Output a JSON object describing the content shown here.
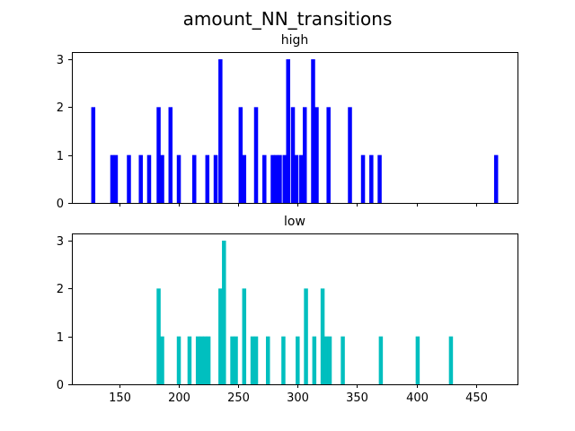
{
  "chart_data": {
    "type": "bar",
    "title": "amount_NN_transitions",
    "xlim": [
      110,
      485
    ],
    "xticks": [
      150,
      200,
      250,
      300,
      350,
      400,
      450
    ],
    "yticks": [
      0,
      1,
      2,
      3
    ],
    "ylim": [
      0,
      3.15
    ],
    "bin_width": 3.4,
    "sharex": true,
    "panels": [
      {
        "title": "high",
        "color": "#0000ff",
        "bins": [
          {
            "x": 128,
            "value": 2
          },
          {
            "x": 144,
            "value": 1
          },
          {
            "x": 147,
            "value": 1
          },
          {
            "x": 158,
            "value": 1
          },
          {
            "x": 168,
            "value": 1
          },
          {
            "x": 175,
            "value": 1
          },
          {
            "x": 183,
            "value": 2
          },
          {
            "x": 186,
            "value": 1
          },
          {
            "x": 193,
            "value": 2
          },
          {
            "x": 200,
            "value": 1
          },
          {
            "x": 213,
            "value": 1
          },
          {
            "x": 224,
            "value": 1
          },
          {
            "x": 231,
            "value": 1
          },
          {
            "x": 235,
            "value": 3
          },
          {
            "x": 252,
            "value": 2
          },
          {
            "x": 255,
            "value": 1
          },
          {
            "x": 265,
            "value": 2
          },
          {
            "x": 272,
            "value": 1
          },
          {
            "x": 279,
            "value": 1
          },
          {
            "x": 282,
            "value": 1
          },
          {
            "x": 285,
            "value": 1
          },
          {
            "x": 289,
            "value": 1
          },
          {
            "x": 292,
            "value": 3
          },
          {
            "x": 296,
            "value": 2
          },
          {
            "x": 299,
            "value": 1
          },
          {
            "x": 303,
            "value": 1
          },
          {
            "x": 306,
            "value": 2
          },
          {
            "x": 313,
            "value": 3
          },
          {
            "x": 316,
            "value": 2
          },
          {
            "x": 326,
            "value": 2
          },
          {
            "x": 344,
            "value": 2
          },
          {
            "x": 355,
            "value": 1
          },
          {
            "x": 362,
            "value": 1
          },
          {
            "x": 369,
            "value": 1
          },
          {
            "x": 467,
            "value": 1
          }
        ]
      },
      {
        "title": "low",
        "color": "#00bfbf",
        "bins": [
          {
            "x": 183,
            "value": 2
          },
          {
            "x": 186,
            "value": 1
          },
          {
            "x": 200,
            "value": 1
          },
          {
            "x": 209,
            "value": 1
          },
          {
            "x": 216,
            "value": 1
          },
          {
            "x": 219,
            "value": 1
          },
          {
            "x": 222,
            "value": 1
          },
          {
            "x": 225,
            "value": 1
          },
          {
            "x": 235,
            "value": 2
          },
          {
            "x": 238,
            "value": 3
          },
          {
            "x": 245,
            "value": 1
          },
          {
            "x": 248,
            "value": 1
          },
          {
            "x": 255,
            "value": 2
          },
          {
            "x": 262,
            "value": 1
          },
          {
            "x": 265,
            "value": 1
          },
          {
            "x": 275,
            "value": 1
          },
          {
            "x": 288,
            "value": 1
          },
          {
            "x": 300,
            "value": 1
          },
          {
            "x": 307,
            "value": 2
          },
          {
            "x": 314,
            "value": 1
          },
          {
            "x": 321,
            "value": 2
          },
          {
            "x": 324,
            "value": 1
          },
          {
            "x": 327,
            "value": 1
          },
          {
            "x": 338,
            "value": 1
          },
          {
            "x": 370,
            "value": 1
          },
          {
            "x": 401,
            "value": 1
          },
          {
            "x": 429,
            "value": 1
          }
        ]
      }
    ]
  }
}
